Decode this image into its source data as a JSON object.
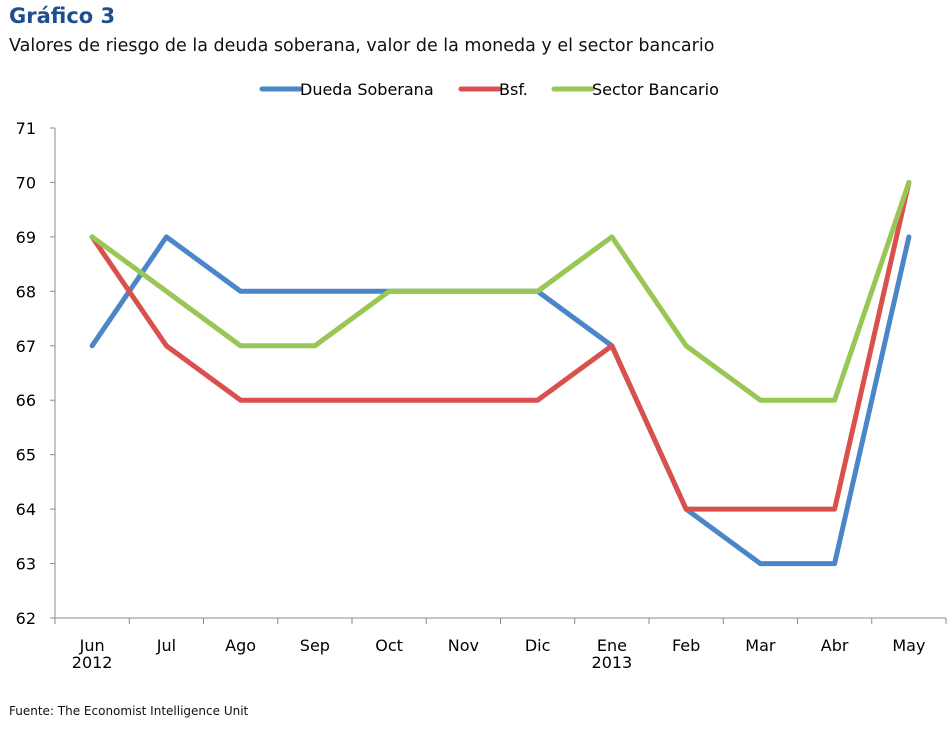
{
  "header": {
    "title": "Gráfico 3",
    "subtitle": "Valores de riesgo de la deuda soberana, valor de la  moneda y el sector bancario"
  },
  "footer": {
    "source": "Fuente:  The Economist Intelligence Unit"
  },
  "chart_data": {
    "type": "line",
    "categories": [
      [
        "Jun",
        "2012"
      ],
      [
        "Jul"
      ],
      [
        "Ago"
      ],
      [
        "Sep"
      ],
      [
        "Oct"
      ],
      [
        "Nov"
      ],
      [
        "Dic"
      ],
      [
        "Ene",
        "2013"
      ],
      [
        "Feb"
      ],
      [
        "Mar"
      ],
      [
        "Abr"
      ],
      [
        "May"
      ]
    ],
    "ylim": [
      62,
      71
    ],
    "yticks": [
      62,
      63,
      64,
      65,
      66,
      67,
      68,
      69,
      70,
      71
    ],
    "grid": false,
    "legend_position": "top",
    "series": [
      {
        "name": "Dueda Soberana",
        "color": "#4a86c8",
        "values": [
          67,
          69,
          68,
          68,
          68,
          68,
          68,
          67,
          64,
          63,
          63,
          69
        ]
      },
      {
        "name": "Bsf.",
        "color": "#d9504c",
        "values": [
          69,
          67,
          66,
          66,
          66,
          66,
          66,
          67,
          64,
          64,
          64,
          70
        ]
      },
      {
        "name": "Sector Bancario",
        "color": "#98c755",
        "values": [
          69,
          68,
          67,
          67,
          68,
          68,
          68,
          69,
          67,
          66,
          66,
          70
        ]
      }
    ]
  }
}
